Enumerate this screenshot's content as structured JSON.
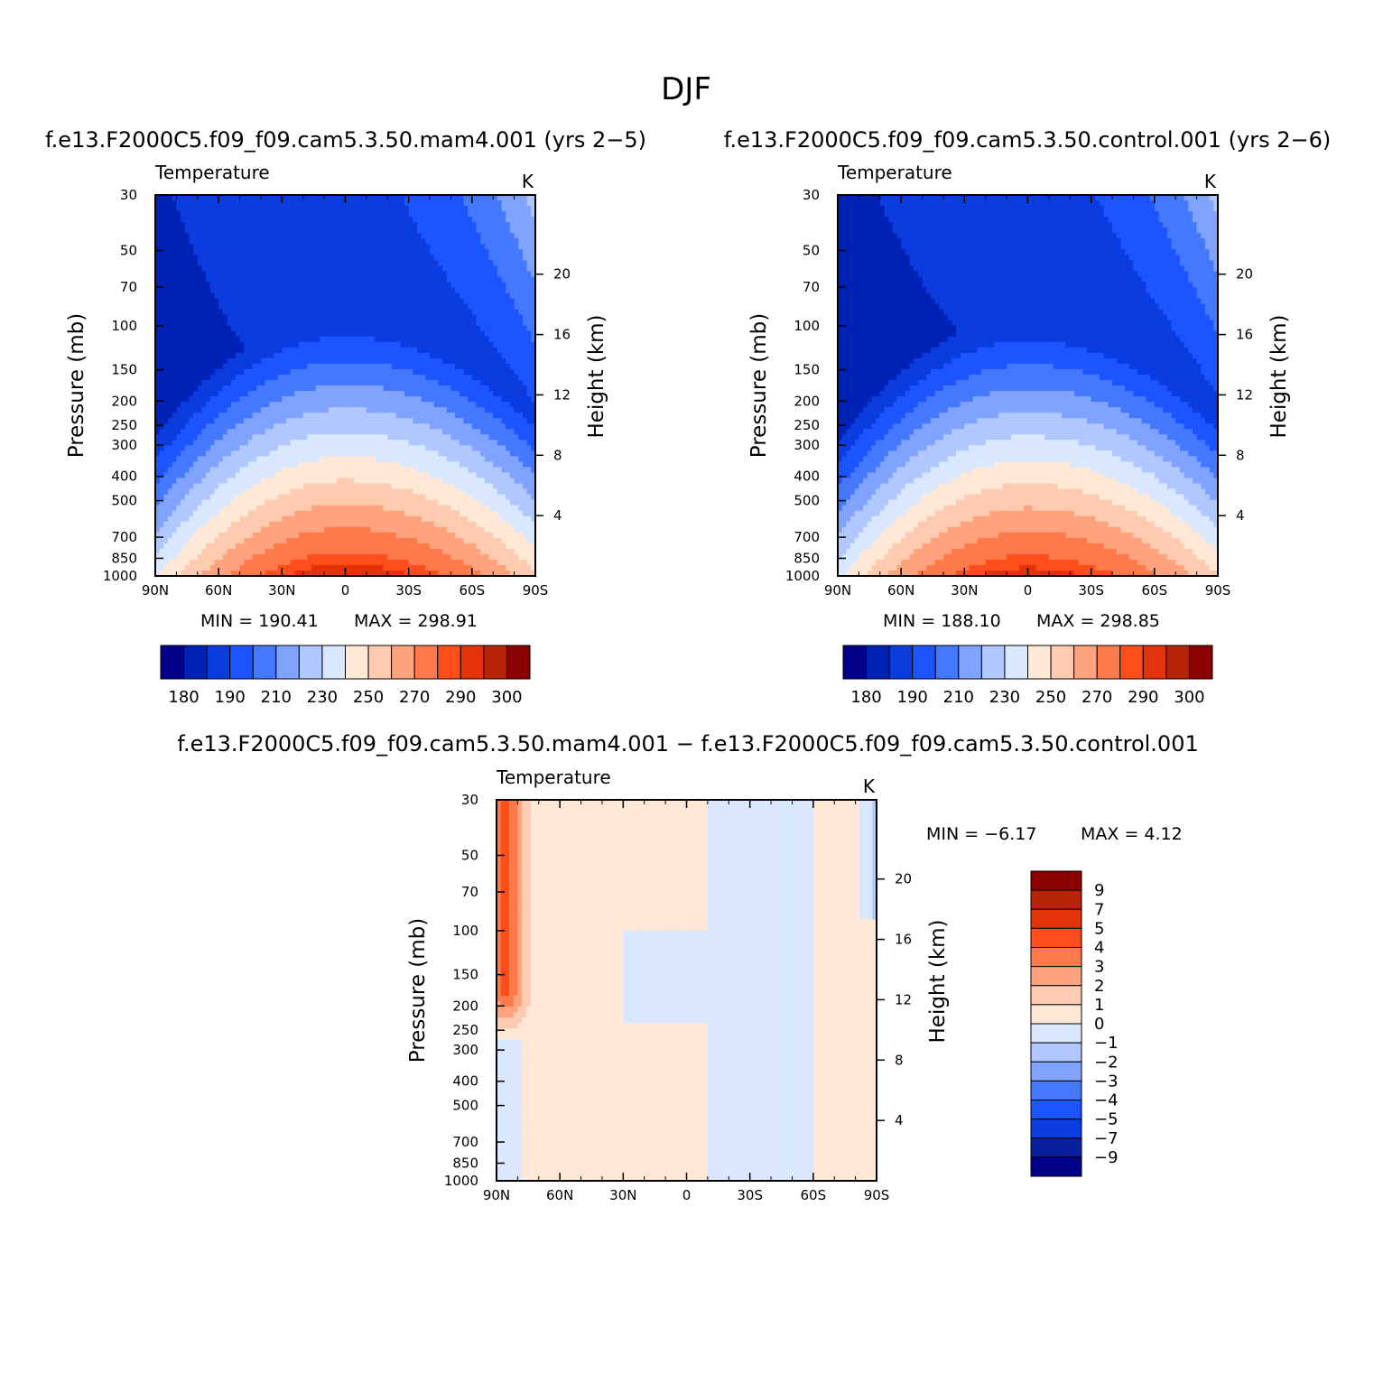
{
  "figure": {
    "title": "DJF"
  },
  "colors": {
    "abs_palette": [
      "#00008b",
      "#0022b4",
      "#0a3ce0",
      "#1c55ff",
      "#4479ff",
      "#7fa3ff",
      "#b0c8ff",
      "#d9e8ff",
      "#ffe8d6",
      "#ffcbb0",
      "#ffa37f",
      "#ff7a4a",
      "#ff4e1c",
      "#e2330a",
      "#b82306",
      "#8b0000"
    ],
    "diff_palette": [
      "#00008b",
      "#0a1f9e",
      "#0a3ce0",
      "#1c55ff",
      "#4479ff",
      "#7fa3ff",
      "#b0c8ff",
      "#d9e8ff",
      "#ffe8d6",
      "#ffcbb0",
      "#ffa37f",
      "#ff7a4a",
      "#ff4e1c",
      "#e2330a",
      "#b82306",
      "#8b0000"
    ]
  },
  "chart_data": [
    {
      "type": "heatmap",
      "title": "f.e13.F2000C5.f09_f09.cam5.3.50.mam4.001  (yrs  2−5)",
      "left_label": "Temperature",
      "right_label": "K",
      "xlabel": "",
      "ylabel": "Pressure  (mb)",
      "y2label": "Height  (km)",
      "x_ticks": [
        "90N",
        "60N",
        "30N",
        "0",
        "30S",
        "60S",
        "90S"
      ],
      "y_ticks": [
        "30",
        "50",
        "70",
        "100",
        "150",
        "200",
        "250",
        "300",
        "400",
        "500",
        "700",
        "850",
        "1000"
      ],
      "y2_ticks": [
        "20",
        "16",
        "12",
        "8",
        "4"
      ],
      "ylim_mb": [
        1000,
        30
      ],
      "log_y": true,
      "min_text": "MIN  =  190.41",
      "max_text": "MAX  =  298.91",
      "field_min": 190.41,
      "field_max": 298.91,
      "colorbar_labels": [
        "180",
        "190",
        "210",
        "230",
        "250",
        "270",
        "290",
        "300"
      ],
      "levels": [
        180,
        190,
        200,
        210,
        220,
        230,
        240,
        250,
        260,
        270,
        280,
        290,
        295,
        300,
        305
      ],
      "offset": 0
    },
    {
      "type": "heatmap",
      "title": "f.e13.F2000C5.f09_f09.cam5.3.50.control.001  (yrs  2−6)",
      "left_label": "Temperature",
      "right_label": "K",
      "xlabel": "",
      "ylabel": "Pressure  (mb)",
      "y2label": "Height  (km)",
      "x_ticks": [
        "90N",
        "60N",
        "30N",
        "0",
        "30S",
        "60S",
        "90S"
      ],
      "y_ticks": [
        "30",
        "50",
        "70",
        "100",
        "150",
        "200",
        "250",
        "300",
        "400",
        "500",
        "700",
        "850",
        "1000"
      ],
      "y2_ticks": [
        "20",
        "16",
        "12",
        "8",
        "4"
      ],
      "ylim_mb": [
        1000,
        30
      ],
      "log_y": true,
      "min_text": "MIN  =  188.10",
      "max_text": "MAX  =  298.85",
      "field_min": 188.1,
      "field_max": 298.85,
      "colorbar_labels": [
        "180",
        "190",
        "210",
        "230",
        "250",
        "270",
        "290",
        "300"
      ],
      "levels": [
        180,
        190,
        200,
        210,
        220,
        230,
        240,
        250,
        260,
        270,
        280,
        290,
        295,
        300,
        305
      ],
      "offset": -1.5
    },
    {
      "type": "heatmap",
      "title": "f.e13.F2000C5.f09_f09.cam5.3.50.mam4.001  −  f.e13.F2000C5.f09_f09.cam5.3.50.control.001",
      "left_label": "Temperature",
      "right_label": "K",
      "xlabel": "",
      "ylabel": "Pressure  (mb)",
      "y2label": "Height  (km)",
      "x_ticks": [
        "90N",
        "60N",
        "30N",
        "0",
        "30S",
        "60S",
        "90S"
      ],
      "y_ticks": [
        "30",
        "50",
        "70",
        "100",
        "150",
        "200",
        "250",
        "300",
        "400",
        "500",
        "700",
        "850",
        "1000"
      ],
      "y2_ticks": [
        "20",
        "16",
        "12",
        "8",
        "4"
      ],
      "ylim_mb": [
        1000,
        30
      ],
      "log_y": true,
      "min_text": "MIN  =    −6.17",
      "max_text": "MAX  =    4.12",
      "field_min": -6.17,
      "field_max": 4.12,
      "colorbar_labels": [
        "9",
        "7",
        "5",
        "4",
        "3",
        "2",
        "1",
        "0",
        "−1",
        "−2",
        "−3",
        "−4",
        "−5",
        "−7",
        "−9"
      ],
      "levels": [
        -9,
        -7,
        -5,
        -4,
        -3,
        -2,
        -1,
        0,
        1,
        2,
        3,
        4,
        5,
        7,
        9
      ]
    }
  ]
}
